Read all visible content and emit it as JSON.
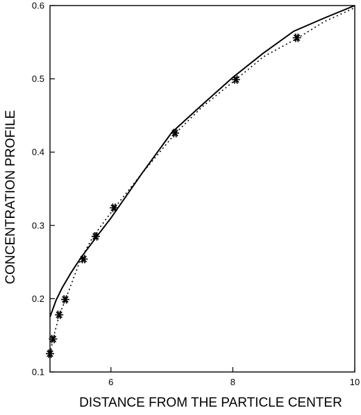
{
  "chart_data": {
    "type": "line",
    "xlabel": "DISTANCE  FROM THE PARTICLE CENTER",
    "ylabel": "CONCENTRATION PROFILE",
    "xlim": [
      5,
      10
    ],
    "ylim": [
      0.1,
      0.6
    ],
    "x_ticks": [
      6,
      8,
      10
    ],
    "y_ticks": [
      0.1,
      0.2,
      0.3,
      0.4,
      0.5,
      0.6
    ],
    "grid": false,
    "series": [
      {
        "style": "solid",
        "x": [
          5.0,
          5.1,
          5.2,
          5.35,
          5.5,
          5.75,
          6.0,
          6.5,
          7.0,
          7.5,
          8.0,
          8.5,
          9.0,
          9.5,
          10.0
        ],
        "y": [
          0.175,
          0.198,
          0.215,
          0.236,
          0.255,
          0.283,
          0.31,
          0.37,
          0.427,
          0.465,
          0.502,
          0.535,
          0.565,
          0.583,
          0.6
        ]
      },
      {
        "style": "dotted",
        "x": [
          5.0,
          5.05,
          5.15,
          5.25,
          5.5,
          5.7,
          6.05,
          6.5,
          7.05,
          7.5,
          8.05,
          8.5,
          9.05,
          9.5,
          10.0
        ],
        "y": [
          0.125,
          0.145,
          0.177,
          0.198,
          0.253,
          0.284,
          0.323,
          0.37,
          0.425,
          0.462,
          0.499,
          0.53,
          0.555,
          0.578,
          0.597
        ]
      },
      {
        "style": "markers",
        "x": [
          5.0,
          5.05,
          5.15,
          5.25,
          5.55,
          5.75,
          6.05,
          7.05,
          8.05,
          9.05
        ],
        "y": [
          0.125,
          0.145,
          0.178,
          0.199,
          0.254,
          0.285,
          0.324,
          0.426,
          0.499,
          0.556
        ]
      }
    ]
  }
}
